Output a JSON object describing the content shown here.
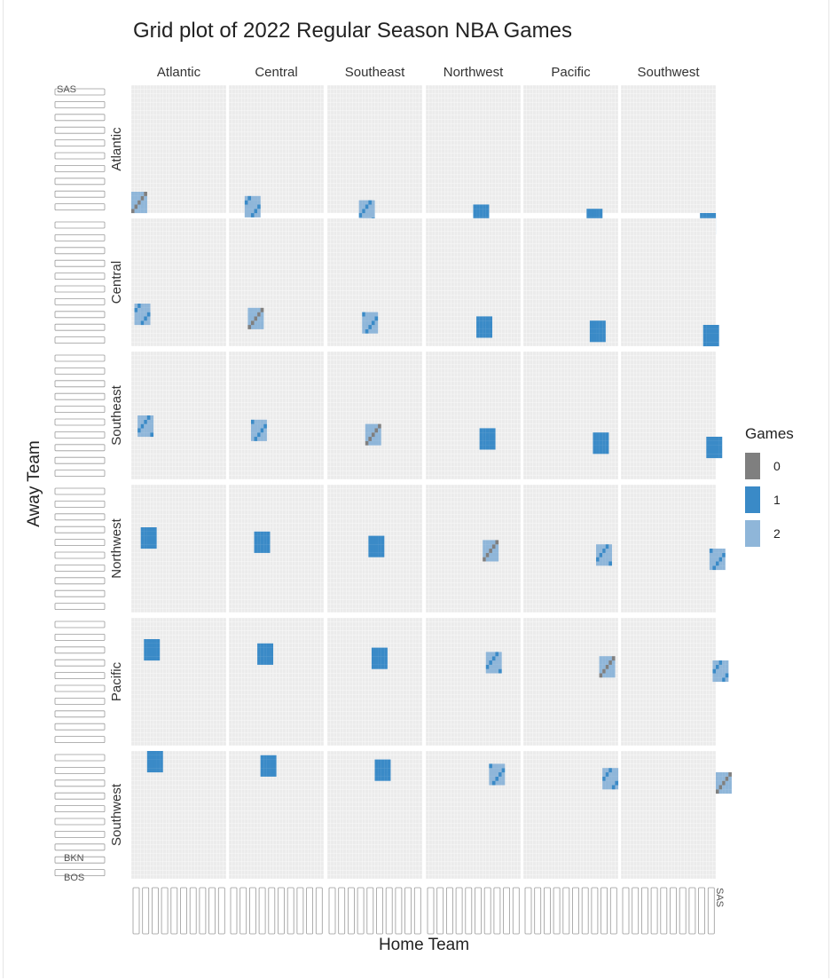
{
  "chart_data": {
    "type": "heatmap",
    "title": "Grid plot of 2022 Regular Season NBA Games",
    "xlabel": "Home Team",
    "ylabel": "Away Team",
    "column_divisions": [
      "Atlantic",
      "Central",
      "Southeast",
      "Northwest",
      "Pacific",
      "Southwest"
    ],
    "row_divisions": [
      "Atlantic",
      "Central",
      "Southeast",
      "Northwest",
      "Pacific",
      "Southwest"
    ],
    "teams_per_division": 5,
    "y_top_tick": "SAS",
    "x_last_tick": "SAS",
    "bottom_y_ticks": [
      "BKN",
      "BOS"
    ],
    "cells": {
      "same_division": "mixed-0-2",
      "same_conference": "mixed-1-2",
      "other_conference": "all-1"
    },
    "legend": {
      "title": "Games",
      "entries": [
        {
          "label": "0",
          "color": "#7f7f7f"
        },
        {
          "label": "1",
          "color": "#3a8ac7"
        },
        {
          "label": "2",
          "color": "#8fb6d9"
        }
      ]
    },
    "colors": {
      "panel_bg": "#ebebeb",
      "grid": "#ffffff",
      "zero": "#7f7f7f",
      "one": "#3a8ac7",
      "two": "#8fb6d9"
    }
  }
}
